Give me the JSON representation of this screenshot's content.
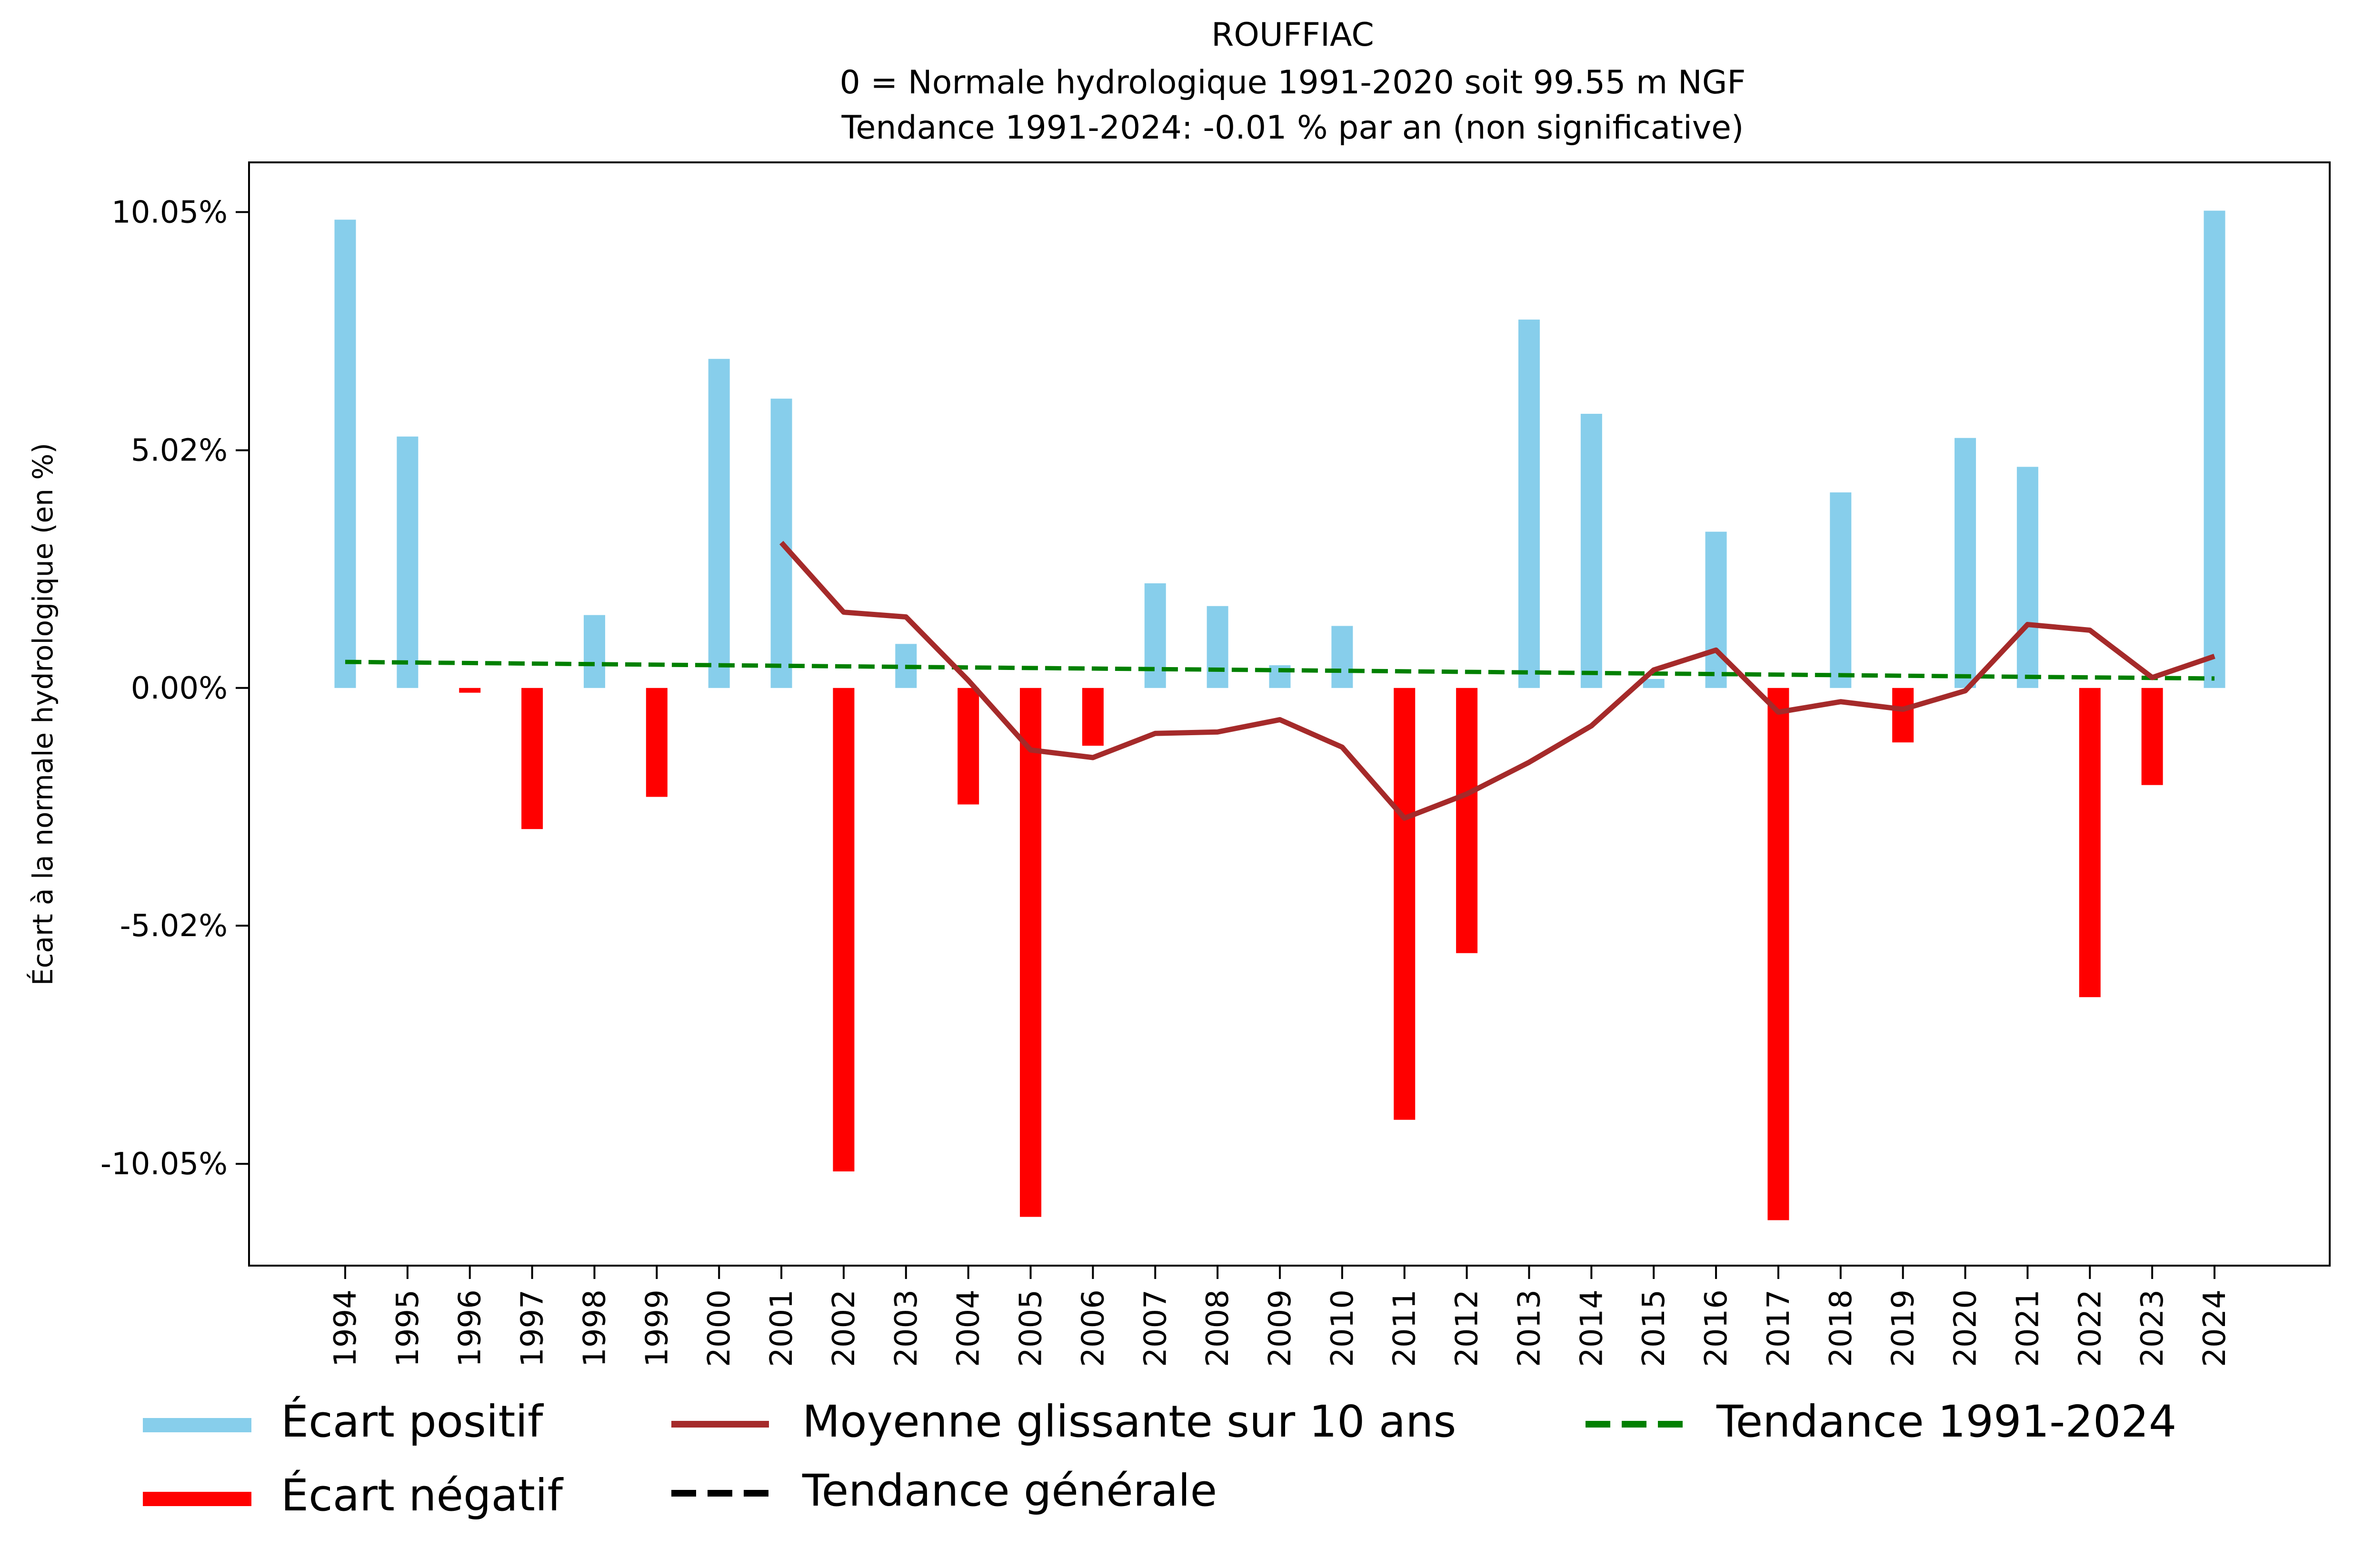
{
  "chart_data": {
    "type": "bar",
    "title_lines": [
      "ROUFFIAC",
      "0 = Normale hydrologique 1991-2020 soit 99.55 m NGF",
      "Tendance 1991-2024: -0.01 % par an (non significative)"
    ],
    "xlabel": "",
    "ylabel": "Écart à la normale hydrologique (en %)",
    "ylim": [
      -12.2,
      11.1
    ],
    "yticks": [
      {
        "value": 10.05,
        "label": "10.05%"
      },
      {
        "value": 5.02,
        "label": "5.02%"
      },
      {
        "value": 0.0,
        "label": "0.00%"
      },
      {
        "value": -5.02,
        "label": "-5.02%"
      },
      {
        "value": -10.05,
        "label": "-10.05%"
      }
    ],
    "categories": [
      "1994",
      "1995",
      "1996",
      "1997",
      "1998",
      "1999",
      "2000",
      "2001",
      "2002",
      "2003",
      "2004",
      "2005",
      "2006",
      "2007",
      "2008",
      "2009",
      "2010",
      "2011",
      "2012",
      "2013",
      "2014",
      "2015",
      "2016",
      "2017",
      "2018",
      "2019",
      "2020",
      "2021",
      "2022",
      "2023",
      "2024"
    ],
    "values": [
      9.89,
      5.31,
      -0.1,
      -2.98,
      1.54,
      -2.3,
      6.95,
      6.11,
      -10.21,
      0.93,
      -2.46,
      -11.17,
      -1.22,
      2.21,
      1.73,
      0.48,
      1.31,
      -9.12,
      -5.6,
      7.78,
      5.79,
      0.19,
      3.3,
      -11.24,
      4.13,
      -1.15,
      5.28,
      4.67,
      -6.53,
      -2.05,
      10.08
    ],
    "moving_average": {
      "name": "Moyenne glissante sur 10 ans",
      "x": [
        "2001",
        "2002",
        "2003",
        "2004",
        "2005",
        "2006",
        "2007",
        "2008",
        "2009",
        "2010",
        "2011",
        "2012",
        "2013",
        "2014",
        "2015",
        "2016",
        "2017",
        "2018",
        "2019",
        "2020",
        "2021",
        "2022",
        "2023",
        "2024"
      ],
      "values": [
        3.07,
        1.6,
        1.5,
        0.16,
        -1.31,
        -1.47,
        -0.96,
        -0.93,
        -0.67,
        -1.25,
        -2.75,
        -2.24,
        -1.57,
        -0.8,
        0.38,
        0.8,
        -0.51,
        -0.29,
        -0.45,
        -0.06,
        1.34,
        1.22,
        0.22,
        0.67
      ]
    },
    "trend": {
      "name": "Tendance 1991-2024",
      "start": {
        "x": "1994",
        "y": 0.55
      },
      "end": {
        "x": "2024",
        "y": 0.2
      }
    },
    "legend": {
      "placement": "bottom",
      "entries": [
        {
          "label": "Écart positif",
          "kind": "patch",
          "color": "#87CEEB"
        },
        {
          "label": "Écart négatif",
          "kind": "patch",
          "color": "#FF0000"
        },
        {
          "label": "Moyenne glissante sur 10 ans",
          "kind": "line",
          "color": "#A52A2A"
        },
        {
          "label": "Tendance générale",
          "kind": "dashed",
          "color": "#000000"
        },
        {
          "label": "Tendance 1991-2024",
          "kind": "dashed",
          "color": "#008000"
        }
      ]
    },
    "colors": {
      "positive": "#87CEEB",
      "negative": "#FF0000",
      "moving_average": "#A52A2A",
      "trend": "#008000",
      "general_trend": "#000000"
    },
    "grid": false
  }
}
